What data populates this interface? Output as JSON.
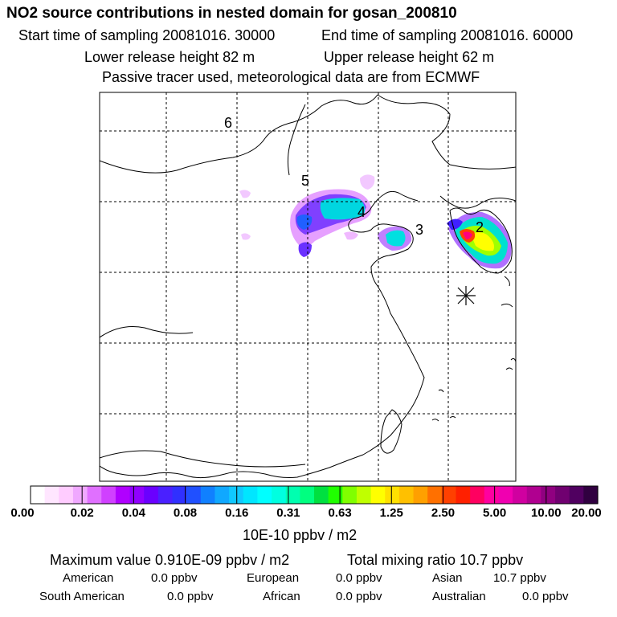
{
  "title": "NO2 source contributions in nested domain for gosan_200810",
  "header": {
    "start_label": "Start time of sampling 20081016. 30000",
    "end_label": "End time of sampling 20081016. 60000",
    "lower_label": "Lower release height   82 m",
    "upper_label": "Upper release height   62 m",
    "tracer_note": "Passive tracer used, meteorological data are from ECMWF"
  },
  "map": {
    "region_labels": [
      "6",
      "5",
      "4",
      "3",
      "2"
    ],
    "colors": {
      "contrast_low": "#ff9cff",
      "mid_cyan": "#00ffff",
      "high_red": "#ff0000"
    }
  },
  "colorbar": {
    "tick_labels": [
      "0.00",
      "0.02",
      "0.04",
      "0.08",
      "0.16",
      "0.31",
      "0.63",
      "1.25",
      "2.50",
      "5.00",
      "10.00",
      "20.00"
    ],
    "colors": [
      "#ffffff",
      "#ffe6ff",
      "#ffccff",
      "#f0a8ff",
      "#e070ff",
      "#d040ff",
      "#b000ff",
      "#9000ff",
      "#6a00ff",
      "#4a20ff",
      "#3030ff",
      "#2050ff",
      "#1080ff",
      "#10a8ff",
      "#10c8ff",
      "#00e6ff",
      "#00ffff",
      "#00ffe0",
      "#00ffb0",
      "#00ff80",
      "#00e040",
      "#20ff00",
      "#80ff00",
      "#c0ff00",
      "#ffff00",
      "#ffe000",
      "#ffc000",
      "#ffa000",
      "#ff7000",
      "#ff4000",
      "#ff2000",
      "#ff0060",
      "#ff00a0",
      "#f000b0",
      "#d000a0",
      "#b00090",
      "#900080",
      "#700070",
      "#500060",
      "#300040"
    ],
    "units": "10E-10 ppbv / m2"
  },
  "footer": {
    "max_value": "Maximum value  0.910E-09 ppbv / m2",
    "total_mix": "Total mixing ratio      10.7 ppbv",
    "rows": [
      [
        {
          "label": "American",
          "value": "0.0 ppbv"
        },
        {
          "label": "European",
          "value": "0.0 ppbv"
        },
        {
          "label": "Asian",
          "value": "10.7 ppbv"
        }
      ],
      [
        {
          "label": "South American",
          "value": "0.0 ppbv"
        },
        {
          "label": "African",
          "value": "0.0 ppbv"
        },
        {
          "label": "Australian",
          "value": "0.0 ppbv"
        }
      ]
    ]
  }
}
